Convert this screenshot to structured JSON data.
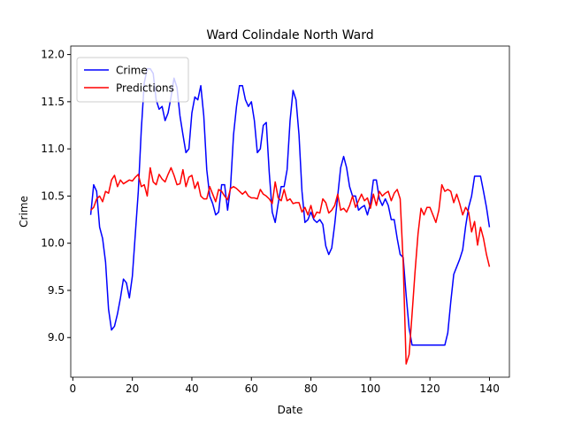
{
  "chart_data": {
    "type": "line",
    "title": "Ward Colindale North Ward",
    "x_label": "Date",
    "y_label": "Crime",
    "x": [
      6,
      7,
      8,
      9,
      10,
      11,
      12,
      13,
      14,
      15,
      16,
      17,
      18,
      19,
      20,
      21,
      22,
      23,
      24,
      25,
      26,
      27,
      28,
      29,
      30,
      31,
      32,
      33,
      34,
      35,
      36,
      37,
      38,
      39,
      40,
      41,
      42,
      43,
      44,
      45,
      46,
      47,
      48,
      49,
      50,
      51,
      52,
      53,
      54,
      55,
      56,
      57,
      58,
      59,
      60,
      61,
      62,
      63,
      64,
      65,
      66,
      67,
      68,
      69,
      70,
      71,
      72,
      73,
      74,
      75,
      76,
      77,
      78,
      79,
      80,
      81,
      82,
      83,
      84,
      85,
      86,
      87,
      88,
      89,
      90,
      91,
      92,
      93,
      94,
      95,
      96,
      97,
      98,
      99,
      100,
      101,
      102,
      103,
      104,
      105,
      106,
      107,
      108,
      109,
      110,
      111,
      112,
      113,
      114,
      115,
      116,
      117,
      118,
      119,
      120,
      121,
      122,
      123,
      124,
      125,
      126,
      127,
      128,
      129,
      130,
      131,
      132,
      133,
      134,
      135,
      136,
      137,
      138,
      139,
      140
    ],
    "series": [
      {
        "name": "Crime",
        "color": "#0000ff",
        "values": [
          10.3,
          10.62,
          10.55,
          10.17,
          10.05,
          9.8,
          9.3,
          9.08,
          9.12,
          9.25,
          9.42,
          9.62,
          9.58,
          9.42,
          9.65,
          10.1,
          10.55,
          11.2,
          11.7,
          11.85,
          11.85,
          11.8,
          11.52,
          11.42,
          11.45,
          11.3,
          11.38,
          11.55,
          11.75,
          11.65,
          11.35,
          11.15,
          10.96,
          11.0,
          11.38,
          11.55,
          11.52,
          11.67,
          11.35,
          10.78,
          10.5,
          10.42,
          10.3,
          10.33,
          10.62,
          10.62,
          10.35,
          10.6,
          11.15,
          11.45,
          11.67,
          11.67,
          11.52,
          11.45,
          11.5,
          11.3,
          10.96,
          11.0,
          11.25,
          11.28,
          10.75,
          10.33,
          10.22,
          10.42,
          10.6,
          10.6,
          10.78,
          11.3,
          11.62,
          11.52,
          11.15,
          10.55,
          10.22,
          10.25,
          10.33,
          10.25,
          10.22,
          10.25,
          10.2,
          9.97,
          9.88,
          9.95,
          10.2,
          10.5,
          10.8,
          10.92,
          10.8,
          10.6,
          10.5,
          10.5,
          10.35,
          10.38,
          10.4,
          10.3,
          10.42,
          10.67,
          10.67,
          10.47,
          10.4,
          10.47,
          10.4,
          10.25,
          10.25,
          10.05,
          9.88,
          9.85,
          9.45,
          9.1,
          8.92,
          8.92,
          8.92,
          8.92,
          8.92,
          8.92,
          8.92,
          8.92,
          8.92,
          8.92,
          8.92,
          8.92,
          9.05,
          9.38,
          9.67,
          9.75,
          9.83,
          9.93,
          10.18,
          10.38,
          10.5,
          10.71,
          10.71,
          10.71,
          10.55,
          10.38,
          10.17
        ]
      },
      {
        "name": "Predictions",
        "color": "#ff0000",
        "values": [
          10.35,
          10.38,
          10.47,
          10.5,
          10.44,
          10.55,
          10.53,
          10.67,
          10.72,
          10.6,
          10.67,
          10.63,
          10.65,
          10.67,
          10.66,
          10.7,
          10.73,
          10.6,
          10.62,
          10.5,
          10.8,
          10.65,
          10.62,
          10.73,
          10.68,
          10.65,
          10.73,
          10.8,
          10.72,
          10.62,
          10.63,
          10.78,
          10.6,
          10.7,
          10.72,
          10.58,
          10.65,
          10.5,
          10.47,
          10.47,
          10.6,
          10.52,
          10.44,
          10.57,
          10.55,
          10.5,
          10.46,
          10.58,
          10.6,
          10.58,
          10.55,
          10.52,
          10.55,
          10.5,
          10.48,
          10.48,
          10.47,
          10.57,
          10.52,
          10.5,
          10.47,
          10.42,
          10.65,
          10.48,
          10.45,
          10.57,
          10.45,
          10.47,
          10.42,
          10.43,
          10.43,
          10.33,
          10.38,
          10.3,
          10.4,
          10.27,
          10.33,
          10.32,
          10.47,
          10.43,
          10.32,
          10.35,
          10.4,
          10.52,
          10.35,
          10.37,
          10.33,
          10.4,
          10.5,
          10.38,
          10.45,
          10.52,
          10.45,
          10.48,
          10.37,
          10.52,
          10.4,
          10.55,
          10.5,
          10.53,
          10.55,
          10.45,
          10.53,
          10.57,
          10.47,
          9.8,
          8.72,
          8.82,
          9.25,
          9.7,
          10.1,
          10.37,
          10.3,
          10.38,
          10.38,
          10.3,
          10.22,
          10.35,
          10.62,
          10.55,
          10.57,
          10.55,
          10.43,
          10.52,
          10.42,
          10.3,
          10.38,
          10.33,
          10.12,
          10.23,
          9.98,
          10.17,
          10.05,
          9.88,
          9.75
        ]
      }
    ],
    "xlim": [
      -0.7,
      146.7
    ],
    "ylim": [
      8.58,
      12.09
    ],
    "xticks": [
      0,
      20,
      40,
      60,
      80,
      100,
      120,
      140
    ],
    "yticks": [
      {
        "value": 9.0,
        "label": "9.0"
      },
      9.5,
      {
        "value": 10.0,
        "label": "10.0"
      },
      10.5,
      {
        "value": 11.0,
        "label": "11.0"
      },
      11.5,
      {
        "value": 12.0,
        "label": "12.0"
      }
    ],
    "legend": "upper left",
    "grid": false
  }
}
